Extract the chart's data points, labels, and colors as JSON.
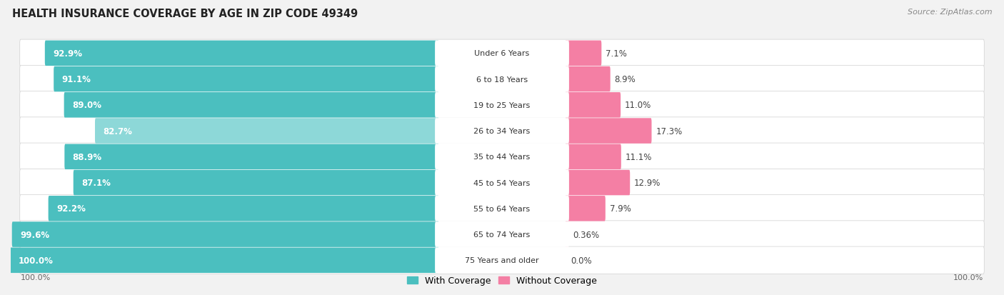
{
  "title": "HEALTH INSURANCE COVERAGE BY AGE IN ZIP CODE 49349",
  "source": "Source: ZipAtlas.com",
  "categories": [
    "Under 6 Years",
    "6 to 18 Years",
    "19 to 25 Years",
    "26 to 34 Years",
    "35 to 44 Years",
    "45 to 54 Years",
    "55 to 64 Years",
    "65 to 74 Years",
    "75 Years and older"
  ],
  "with_coverage": [
    92.9,
    91.1,
    89.0,
    82.7,
    88.9,
    87.1,
    92.2,
    99.6,
    100.0
  ],
  "without_coverage": [
    7.1,
    8.9,
    11.0,
    17.3,
    11.1,
    12.9,
    7.9,
    0.36,
    0.0
  ],
  "with_coverage_labels": [
    "92.9%",
    "91.1%",
    "89.0%",
    "82.7%",
    "88.9%",
    "87.1%",
    "92.2%",
    "99.6%",
    "100.0%"
  ],
  "without_coverage_labels": [
    "7.1%",
    "8.9%",
    "11.0%",
    "17.3%",
    "11.1%",
    "12.9%",
    "7.9%",
    "0.36%",
    "0.0%"
  ],
  "color_with": "#4BBFBF",
  "color_with_light": "#8DD8D8",
  "color_without": "#F47FA4",
  "color_without_light": "#F9B8CC",
  "row_bg": "#EBEBEB",
  "title_fontsize": 10.5,
  "source_fontsize": 8,
  "label_fontsize": 8.5,
  "cat_fontsize": 8,
  "legend_fontsize": 9,
  "axis_label_left": "100.0%",
  "axis_label_right": "100.0%"
}
